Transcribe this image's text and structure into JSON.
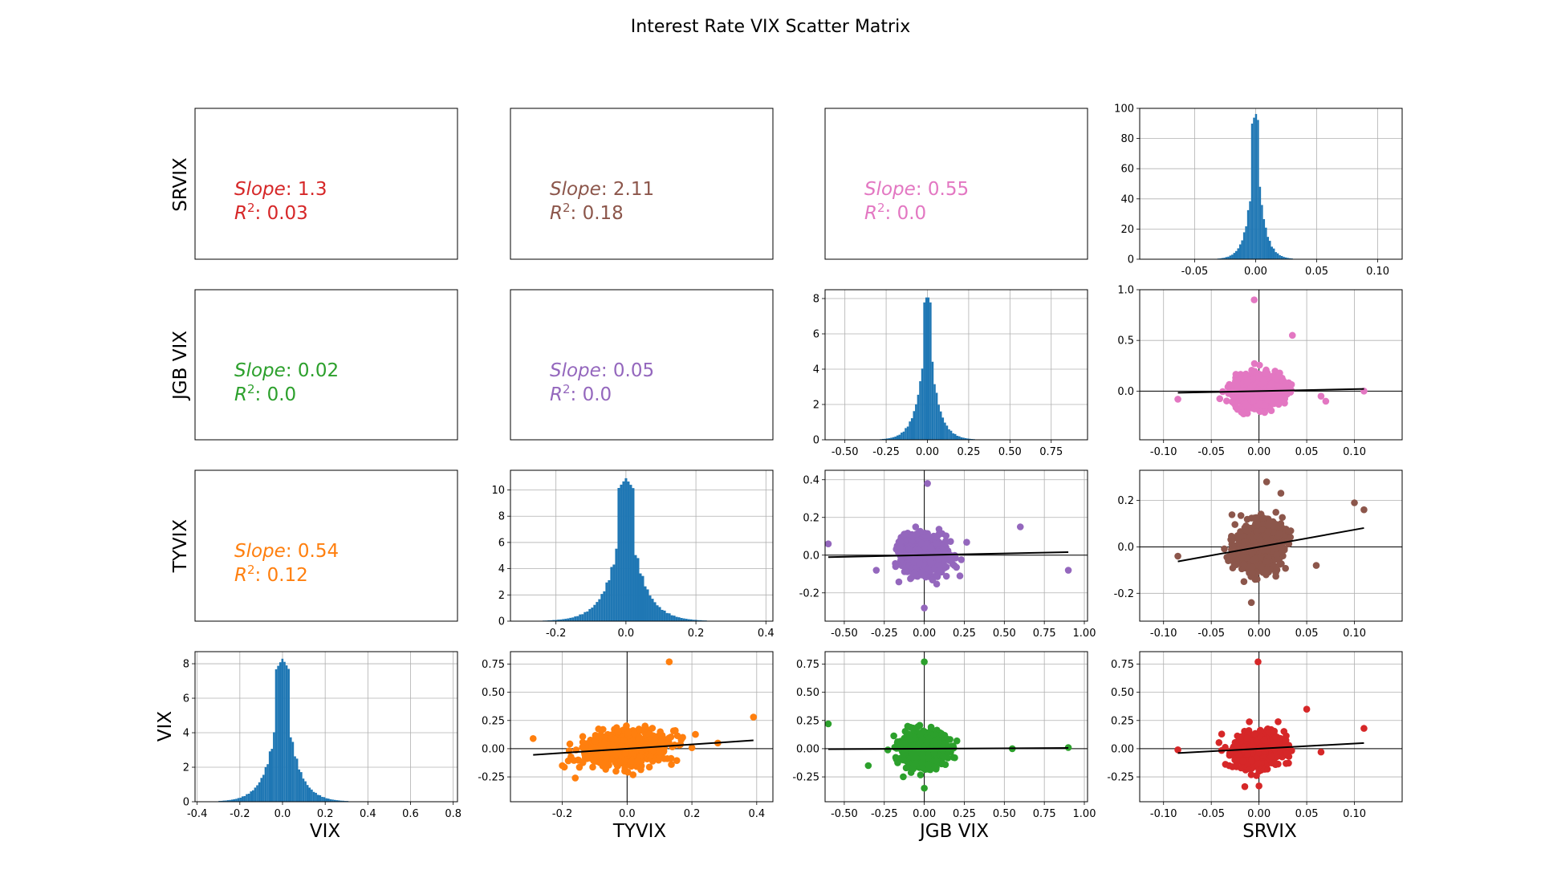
{
  "chart_data": {
    "type": "scatter",
    "title": "Interest Rate VIX Scatter Matrix",
    "variables": [
      "VIX",
      "TYVIX",
      "JGB VIX",
      "SRVIX"
    ],
    "row_order": [
      "SRVIX",
      "JGB VIX",
      "TYVIX",
      "VIX"
    ],
    "column_order": [
      "VIX",
      "TYVIX",
      "JGB VIX",
      "SRVIX"
    ],
    "grid": true,
    "colors": {
      "hist": "#1f77b4",
      "VIX|TYVIX": "#ff7f0e",
      "VIX|JGB VIX": "#2ca02c",
      "VIX|SRVIX": "#d62728",
      "TYVIX|JGB VIX": "#9467bd",
      "TYVIX|SRVIX": "#8c564b",
      "JGB VIX|SRVIX": "#e377c2",
      "fit_line": "#000000"
    },
    "stat_labels": {
      "slope": "Slope",
      "r2": "R",
      "r2_sup": "2"
    },
    "stats": [
      {
        "row": "SRVIX",
        "col": "VIX",
        "slope": "1.3",
        "r2": "0.03",
        "color": "#d62728"
      },
      {
        "row": "SRVIX",
        "col": "TYVIX",
        "slope": "2.11",
        "r2": "0.18",
        "color": "#8c564b"
      },
      {
        "row": "SRVIX",
        "col": "JGB VIX",
        "slope": "0.55",
        "r2": "0.0",
        "color": "#e377c2"
      },
      {
        "row": "JGB VIX",
        "col": "VIX",
        "slope": "0.02",
        "r2": "0.0",
        "color": "#2ca02c"
      },
      {
        "row": "JGB VIX",
        "col": "TYVIX",
        "slope": "0.05",
        "r2": "0.0",
        "color": "#9467bd"
      },
      {
        "row": "TYVIX",
        "col": "VIX",
        "slope": "0.54",
        "r2": "0.12",
        "color": "#ff7f0e"
      }
    ],
    "histograms": [
      {
        "var": "SRVIX",
        "xlim": [
          -0.095,
          0.12
        ],
        "ylim": [
          0,
          100
        ],
        "xticks": [
          "-0.05",
          "0.00",
          "0.05",
          "0.10"
        ],
        "xtick_values": [
          -0.05,
          0,
          0.05,
          0.1
        ],
        "yticks": [
          "0",
          "20",
          "40",
          "60",
          "80",
          "100"
        ],
        "ytick_values": [
          0,
          20,
          40,
          60,
          80,
          100
        ],
        "center": 0.0,
        "peak": 97,
        "spread": 0.006,
        "range": [
          -0.085,
          0.11
        ],
        "bins": 120
      },
      {
        "var": "JGB VIX",
        "xlim": [
          -0.62,
          0.97
        ],
        "ylim": [
          0,
          8.5
        ],
        "xticks": [
          "-0.50",
          "-0.25",
          "0.00",
          "0.25",
          "0.50",
          "0.75"
        ],
        "xtick_values": [
          -0.5,
          -0.25,
          0,
          0.25,
          0.5,
          0.75
        ],
        "yticks": [
          "0",
          "2",
          "4",
          "6",
          "8"
        ],
        "ytick_values": [
          0,
          2,
          4,
          6,
          8
        ],
        "center": 0.0,
        "peak": 8.2,
        "spread": 0.055,
        "range": [
          -0.6,
          0.9
        ],
        "bins": 120
      },
      {
        "var": "TYVIX",
        "xlim": [
          -0.33,
          0.42
        ],
        "ylim": [
          0,
          11.5
        ],
        "xticks": [
          "-0.2",
          "0.0",
          "0.2",
          "0.4"
        ],
        "xtick_values": [
          -0.2,
          0,
          0.2,
          0.4
        ],
        "yticks": [
          "0",
          "2",
          "4",
          "6",
          "8",
          "10"
        ],
        "ytick_values": [
          0,
          2,
          4,
          6,
          8,
          10
        ],
        "center": 0.0,
        "peak": 10.9,
        "spread": 0.045,
        "range": [
          -0.3,
          0.39
        ],
        "bins": 100
      },
      {
        "var": "VIX",
        "xlim": [
          -0.41,
          0.82
        ],
        "ylim": [
          0,
          8.7
        ],
        "xticks": [
          "-0.4",
          "-0.2",
          "0.0",
          "0.2",
          "0.4",
          "0.6",
          "0.8"
        ],
        "xtick_values": [
          -0.4,
          -0.2,
          0,
          0.2,
          0.4,
          0.6,
          0.8
        ],
        "yticks": [
          "0",
          "2",
          "4",
          "6",
          "8"
        ],
        "ytick_values": [
          0,
          2,
          4,
          6,
          8
        ],
        "center": 0.0,
        "peak": 8.3,
        "spread": 0.06,
        "range": [
          -0.3,
          0.78
        ],
        "bins": 110
      }
    ],
    "scatters": [
      {
        "row": "JGB VIX",
        "col": "SRVIX",
        "x_var": "SRVIX",
        "y_var": "JGB VIX",
        "color": "#e377c2",
        "xlim": [
          -0.125,
          0.15
        ],
        "ylim": [
          -0.48,
          1.0
        ],
        "xticks": [
          "-0.10",
          "-0.05",
          "0.00",
          "0.05",
          "0.10"
        ],
        "xtick_values": [
          -0.1,
          -0.05,
          0,
          0.05,
          0.1
        ],
        "yticks": [
          "0.0",
          "0.5",
          "1.0"
        ],
        "ytick_values": [
          0,
          0.5,
          1.0
        ],
        "x_spread": 0.012,
        "y_spread": 0.08,
        "slope": 0.55,
        "outliers": [
          [
            -0.085,
            -0.08
          ],
          [
            -0.005,
            0.9
          ],
          [
            0.11,
            0.0
          ],
          [
            0.07,
            -0.1
          ],
          [
            0.035,
            0.55
          ],
          [
            0.065,
            -0.05
          ]
        ]
      },
      {
        "row": "TYVIX",
        "col": "JGB VIX",
        "x_var": "JGB VIX",
        "y_var": "TYVIX",
        "color": "#9467bd",
        "xlim": [
          -0.62,
          1.02
        ],
        "ylim": [
          -0.35,
          0.45
        ],
        "xticks": [
          "-0.50",
          "-0.25",
          "0.00",
          "0.25",
          "0.50",
          "0.75",
          "1.00"
        ],
        "xtick_values": [
          -0.5,
          -0.25,
          0,
          0.25,
          0.5,
          0.75,
          1.0
        ],
        "yticks": [
          "-0.2",
          "0.0",
          "0.2",
          "0.4"
        ],
        "ytick_values": [
          -0.2,
          0,
          0.2,
          0.4
        ],
        "x_spread": 0.07,
        "y_spread": 0.05,
        "slope": 0.05,
        "outliers": [
          [
            -0.6,
            0.06
          ],
          [
            0.9,
            -0.08
          ],
          [
            0.02,
            0.38
          ],
          [
            0.6,
            0.15
          ],
          [
            -0.3,
            -0.08
          ],
          [
            0.0,
            -0.28
          ]
        ]
      },
      {
        "row": "TYVIX",
        "col": "SRVIX",
        "x_var": "SRVIX",
        "y_var": "TYVIX",
        "color": "#8c564b",
        "xlim": [
          -0.125,
          0.15
        ],
        "ylim": [
          -0.32,
          0.33
        ],
        "xticks": [
          "-0.10",
          "-0.05",
          "0.00",
          "0.05",
          "0.10"
        ],
        "xtick_values": [
          -0.1,
          -0.05,
          0,
          0.05,
          0.1
        ],
        "yticks": [
          "-0.2",
          "0.0",
          "0.2"
        ],
        "ytick_values": [
          -0.2,
          0,
          0.2
        ],
        "x_spread": 0.012,
        "y_spread": 0.05,
        "slope": 2.11,
        "outliers": [
          [
            -0.085,
            -0.04
          ],
          [
            0.11,
            0.16
          ],
          [
            0.008,
            0.28
          ],
          [
            0.06,
            -0.08
          ],
          [
            -0.008,
            -0.24
          ],
          [
            0.1,
            0.19
          ]
        ]
      },
      {
        "row": "VIX",
        "col": "TYVIX",
        "x_var": "TYVIX",
        "y_var": "VIX",
        "color": "#ff7f0e",
        "xlim": [
          -0.36,
          0.45
        ],
        "ylim": [
          -0.47,
          0.86
        ],
        "xticks": [
          "-0.2",
          "0.0",
          "0.2",
          "0.4"
        ],
        "xtick_values": [
          -0.2,
          0,
          0.2,
          0.4
        ],
        "yticks": [
          "-0.25",
          "0.00",
          "0.25",
          "0.50",
          "0.75"
        ],
        "ytick_values": [
          -0.25,
          0,
          0.25,
          0.5,
          0.75
        ],
        "x_spread": 0.06,
        "y_spread": 0.07,
        "slope": 0.54,
        "outliers": [
          [
            -0.29,
            0.09
          ],
          [
            0.39,
            0.28
          ],
          [
            0.13,
            0.77
          ],
          [
            -0.16,
            -0.26
          ],
          [
            0.28,
            0.05
          ],
          [
            -0.2,
            -0.15
          ]
        ]
      },
      {
        "row": "VIX",
        "col": "JGB VIX",
        "x_var": "JGB VIX",
        "y_var": "VIX",
        "color": "#2ca02c",
        "xlim": [
          -0.62,
          1.02
        ],
        "ylim": [
          -0.47,
          0.86
        ],
        "xticks": [
          "-0.50",
          "-0.25",
          "0.00",
          "0.25",
          "0.50",
          "0.75",
          "1.00"
        ],
        "xtick_values": [
          -0.5,
          -0.25,
          0,
          0.25,
          0.5,
          0.75,
          1.0
        ],
        "yticks": [
          "-0.25",
          "0.00",
          "0.25",
          "0.50",
          "0.75"
        ],
        "ytick_values": [
          -0.25,
          0,
          0.25,
          0.5,
          0.75
        ],
        "x_spread": 0.07,
        "y_spread": 0.07,
        "slope": 0.02,
        "outliers": [
          [
            -0.6,
            0.22
          ],
          [
            0.9,
            0.01
          ],
          [
            0.0,
            0.77
          ],
          [
            0.55,
            0.0
          ],
          [
            -0.35,
            -0.15
          ],
          [
            0.0,
            -0.35
          ]
        ]
      },
      {
        "row": "VIX",
        "col": "SRVIX",
        "x_var": "SRVIX",
        "y_var": "VIX",
        "color": "#d62728",
        "xlim": [
          -0.125,
          0.15
        ],
        "ylim": [
          -0.47,
          0.86
        ],
        "xticks": [
          "-0.10",
          "-0.05",
          "0.00",
          "0.05",
          "0.10"
        ],
        "xtick_values": [
          -0.1,
          -0.05,
          0,
          0.05,
          0.1
        ],
        "yticks": [
          "-0.25",
          "0.00",
          "0.25",
          "0.50",
          "0.75"
        ],
        "ytick_values": [
          -0.25,
          0,
          0.25,
          0.5,
          0.75
        ],
        "x_spread": 0.012,
        "y_spread": 0.07,
        "slope": 1.3,
        "outliers": [
          [
            -0.085,
            -0.01
          ],
          [
            0.11,
            0.18
          ],
          [
            -0.001,
            0.77
          ],
          [
            0.05,
            0.35
          ],
          [
            0.065,
            -0.03
          ],
          [
            0.0,
            -0.33
          ]
        ]
      }
    ],
    "row_labels": [
      "SRVIX",
      "JGB VIX",
      "TYVIX",
      "VIX"
    ],
    "column_labels": [
      "VIX",
      "TYVIX",
      "JGB VIX",
      "SRVIX"
    ]
  }
}
